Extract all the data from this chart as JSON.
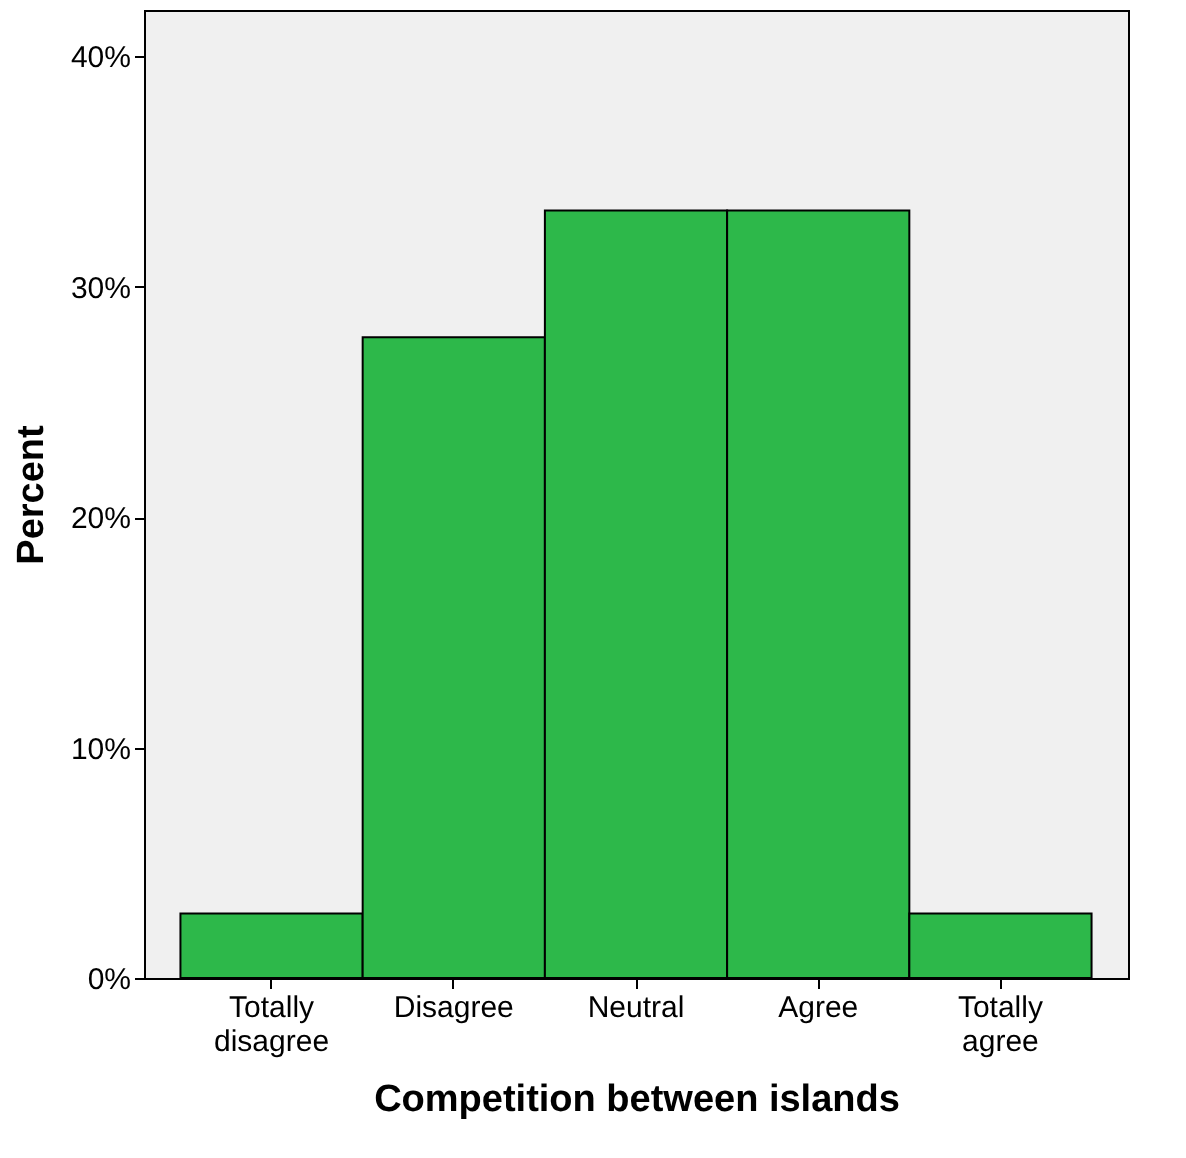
{
  "chart_data": {
    "type": "bar",
    "xlabel": "Competition between islands",
    "ylabel": "Percent",
    "categories": [
      "Totally disagree",
      "Disagree",
      "Neutral",
      "Agree",
      "Totally agree"
    ],
    "values": [
      2.8,
      27.8,
      33.3,
      33.3,
      2.8
    ],
    "color": "#2db84a",
    "ylim": [
      0,
      42
    ],
    "yticks": [
      {
        "value": 0,
        "label": "0%"
      },
      {
        "value": 10,
        "label": "10%"
      },
      {
        "value": 20,
        "label": "20%"
      },
      {
        "value": 30,
        "label": "30%"
      },
      {
        "value": 40,
        "label": "40%"
      }
    ],
    "grid": false
  }
}
